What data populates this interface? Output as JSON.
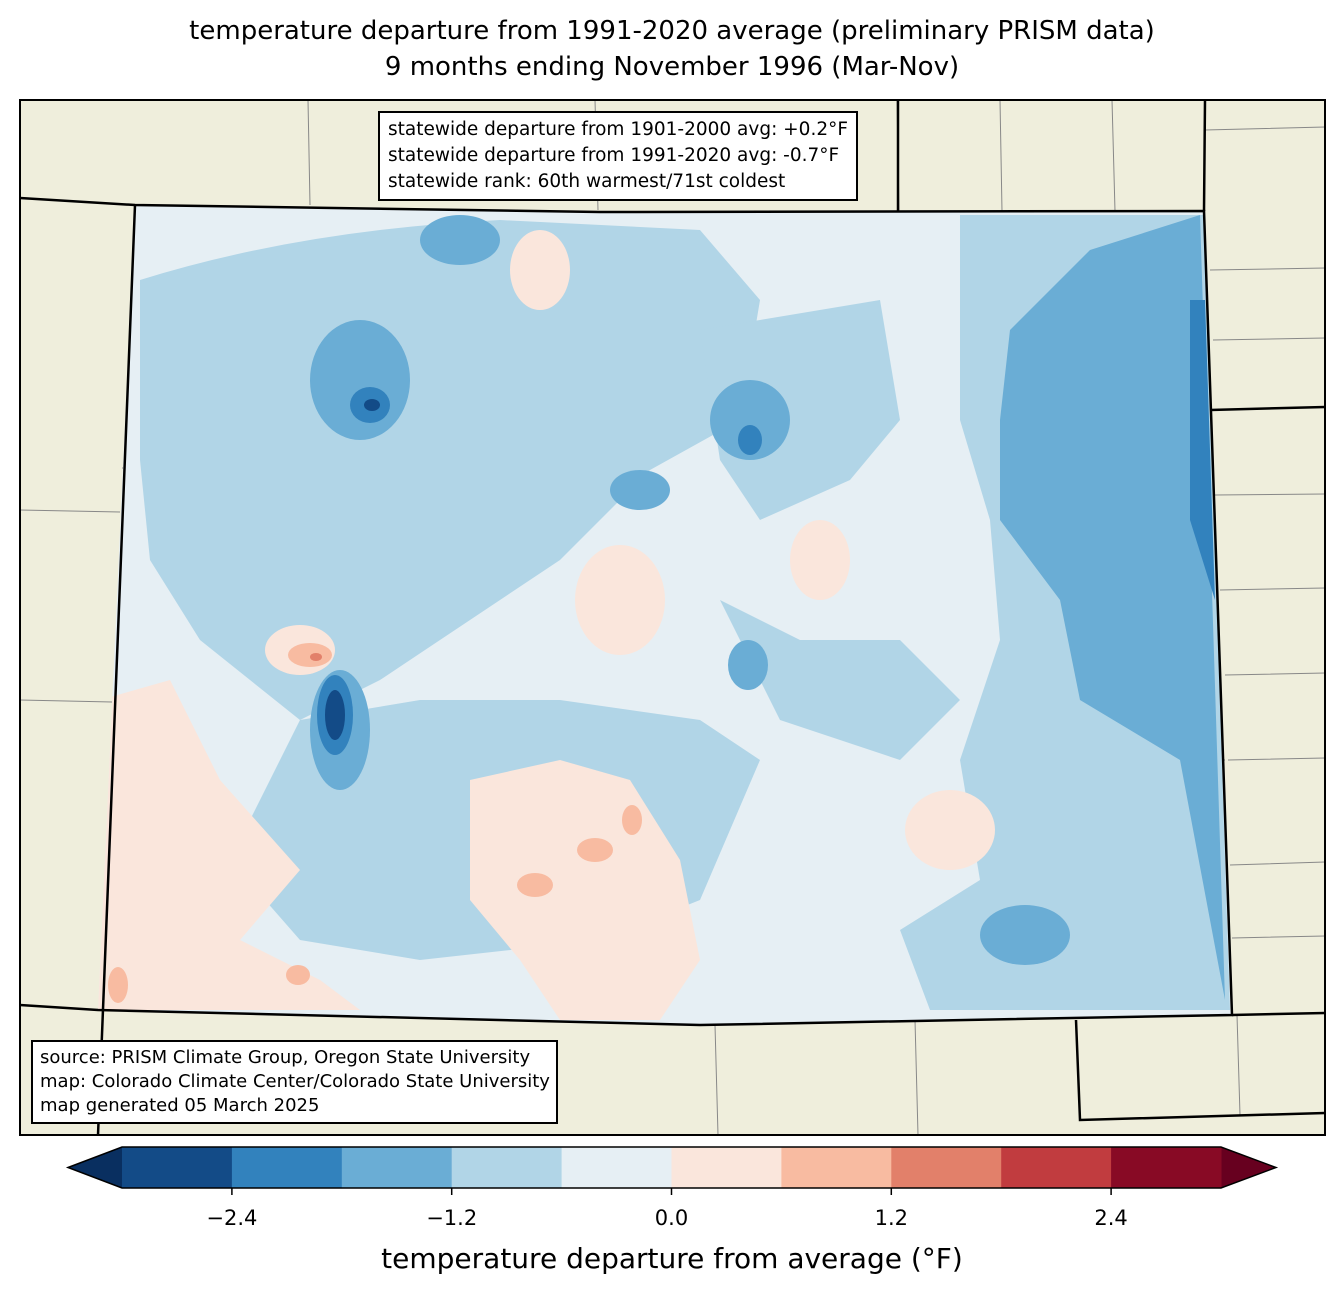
{
  "title_line1": "temperature departure from 1991-2020 average (preliminary PRISM data)",
  "title_line2": "9 months ending November 1996 (Mar-Nov)",
  "stats": {
    "line1": "statewide departure from 1901-2000 avg: +0.2°F",
    "line2": "statewide departure from 1991-2020 avg: -0.7°F",
    "line3": "statewide rank: 60th warmest/71st coldest"
  },
  "credits": {
    "line1": "source: PRISM Climate Group, Oregon State University",
    "line2": "map: Colorado Climate Center/Colorado State University",
    "line3": "map generated 05 March 2025"
  },
  "chart_data": {
    "type": "heatmap",
    "region": "Colorado",
    "colorbar": {
      "label": "temperature departure from average (°F)",
      "bounds": [
        -3.0,
        -2.4,
        -1.8,
        -1.2,
        -0.6,
        0.0,
        0.6,
        1.2,
        1.8,
        2.4,
        3.0
      ],
      "colors": [
        "#134b87",
        "#3282bd",
        "#6aadd5",
        "#b1d5e7",
        "#e6eff4",
        "#fae6dc",
        "#f8bba1",
        "#e2806a",
        "#c13c3f",
        "#880a25"
      ],
      "extend_low_color": "#092f60",
      "extend_high_color": "#67001f",
      "tick_labels": [
        "−2.4",
        "−1.2",
        "0.0",
        "1.2",
        "2.4"
      ],
      "ticks": [
        -2.4,
        -1.2,
        0.0,
        1.2,
        2.4
      ]
    },
    "land_color": "#efeedc"
  }
}
